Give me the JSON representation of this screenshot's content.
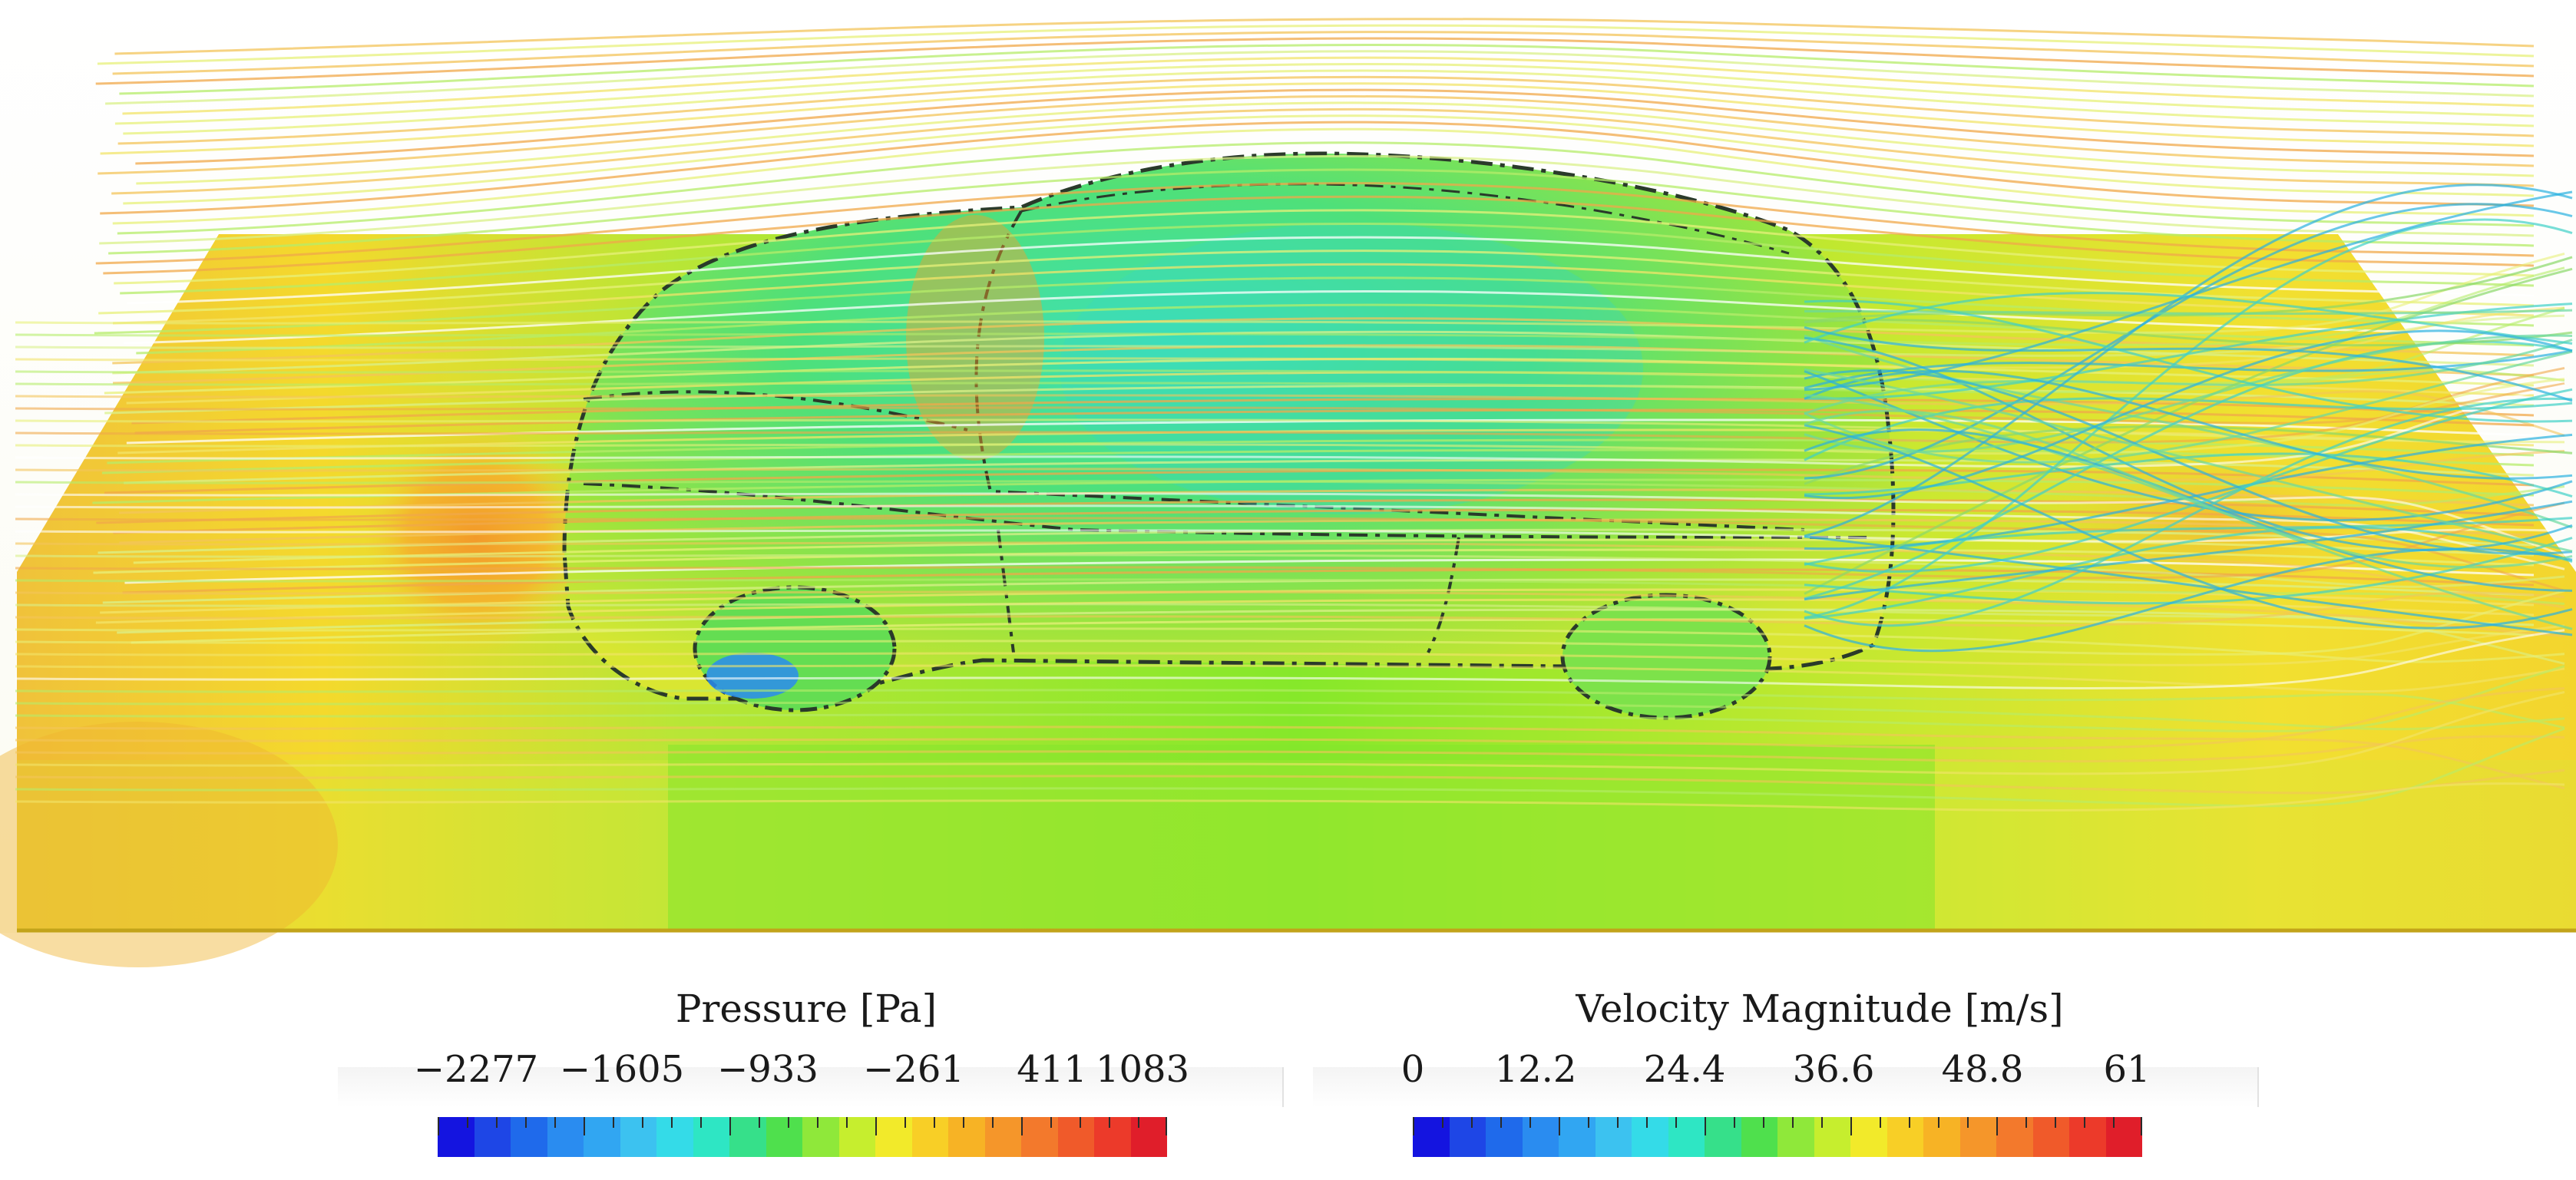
{
  "legends": [
    {
      "title": "Pressure [Pa]",
      "ticks": [
        "−2277",
        "−1605",
        "−933",
        "−261",
        "411",
        "1083"
      ],
      "colors": [
        "#1414e0",
        "#1e46e6",
        "#1f6aeb",
        "#2a8cf0",
        "#31a6f2",
        "#3cc2f0",
        "#34dbe8",
        "#2ee6c4",
        "#36e08a",
        "#4fe04d",
        "#8fe83a",
        "#c6ee2e",
        "#f2ea2a",
        "#f8cf26",
        "#f7b325",
        "#f5962a",
        "#f3792c",
        "#f05a2a",
        "#ec3a2a",
        "#e01e2a"
      ]
    },
    {
      "title": "Velocity Magnitude [m/s]",
      "ticks": [
        "0",
        "12.2",
        "24.4",
        "36.6",
        "48.8",
        "61"
      ],
      "colors": [
        "#1414e0",
        "#1e46e6",
        "#1f6aeb",
        "#2a8cf0",
        "#31a6f2",
        "#3cc2f0",
        "#34dbe8",
        "#2ee6c4",
        "#36e08a",
        "#4fe04d",
        "#8fe83a",
        "#c6ee2e",
        "#f2ea2a",
        "#f8cf26",
        "#f7b325",
        "#f5962a",
        "#f3792c",
        "#f05a2a",
        "#ec3a2a",
        "#e01e2a"
      ]
    }
  ]
}
